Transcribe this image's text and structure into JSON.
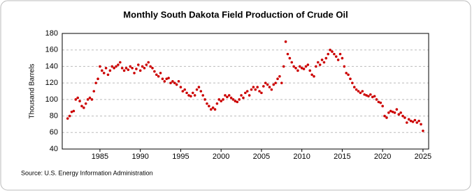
{
  "chart_data": {
    "type": "scatter",
    "title": "Monthly South Dakota Field Production of Crude Oil",
    "y_label": "Thousand Barrels",
    "source": "Source: U.S. Energy Information Administration",
    "xlim": [
      1980.33,
      2025.7
    ],
    "xticks": [
      1985,
      1990,
      1995,
      2000,
      2005,
      2010,
      2015,
      2020,
      2025
    ],
    "ylim": [
      40,
      180
    ],
    "yticks": [
      40,
      60,
      80,
      100,
      120,
      140,
      160,
      180
    ],
    "grid": true,
    "series": [
      {
        "name": "South Dakota Field Production of Crude Oil",
        "color": "#cc0000",
        "x": [
          1981,
          1981.25,
          1981.5,
          1981.75,
          1982,
          1982.25,
          1982.5,
          1982.75,
          1983,
          1983.25,
          1983.5,
          1983.75,
          1984,
          1984.25,
          1984.5,
          1984.75,
          1985,
          1985.25,
          1985.5,
          1985.75,
          1986,
          1986.25,
          1986.5,
          1986.75,
          1987,
          1987.25,
          1987.5,
          1987.75,
          1988,
          1988.25,
          1988.5,
          1988.75,
          1989,
          1989.25,
          1989.5,
          1989.75,
          1990,
          1990.25,
          1990.5,
          1990.75,
          1991,
          1991.25,
          1991.5,
          1991.75,
          1992,
          1992.25,
          1992.5,
          1992.75,
          1993,
          1993.25,
          1993.5,
          1993.75,
          1994,
          1994.25,
          1994.5,
          1994.75,
          1995,
          1995.25,
          1995.5,
          1995.75,
          1996,
          1996.25,
          1996.5,
          1996.75,
          1997,
          1997.25,
          1997.5,
          1997.75,
          1998,
          1998.25,
          1998.5,
          1998.75,
          1999,
          1999.25,
          1999.5,
          1999.75,
          2000,
          2000.25,
          2000.5,
          2000.75,
          2001,
          2001.25,
          2001.5,
          2001.75,
          2002,
          2002.25,
          2002.5,
          2002.75,
          2003,
          2003.25,
          2003.5,
          2003.75,
          2004,
          2004.25,
          2004.5,
          2004.75,
          2005,
          2005.25,
          2005.5,
          2005.75,
          2006,
          2006.25,
          2006.5,
          2006.75,
          2007,
          2007.25,
          2007.5,
          2007.75,
          2008,
          2008.25,
          2008.5,
          2008.75,
          2009,
          2009.25,
          2009.5,
          2009.75,
          2010,
          2010.25,
          2010.5,
          2010.75,
          2011,
          2011.25,
          2011.5,
          2011.75,
          2012,
          2012.25,
          2012.5,
          2012.75,
          2013,
          2013.25,
          2013.5,
          2013.75,
          2014,
          2014.25,
          2014.5,
          2014.75,
          2015,
          2015.25,
          2015.5,
          2015.75,
          2016,
          2016.25,
          2016.5,
          2016.75,
          2017,
          2017.25,
          2017.5,
          2017.75,
          2018,
          2018.25,
          2018.5,
          2018.75,
          2019,
          2019.25,
          2019.5,
          2019.75,
          2020,
          2020.25,
          2020.5,
          2020.75,
          2021,
          2021.25,
          2021.5,
          2021.75,
          2022,
          2022.25,
          2022.5,
          2022.75,
          2023,
          2023.25,
          2023.5,
          2023.75,
          2024,
          2024.25,
          2024.5,
          2024.75,
          2025
        ],
        "values": [
          77,
          80,
          85,
          86,
          100,
          102,
          98,
          92,
          90,
          95,
          100,
          102,
          100,
          110,
          120,
          125,
          140,
          135,
          132,
          138,
          130,
          135,
          140,
          138,
          140,
          142,
          145,
          138,
          135,
          138,
          136,
          140,
          138,
          132,
          137,
          142,
          135,
          140,
          138,
          142,
          145,
          140,
          138,
          134,
          130,
          128,
          132,
          125,
          122,
          125,
          126,
          120,
          122,
          120,
          118,
          122,
          115,
          110,
          112,
          108,
          105,
          104,
          108,
          105,
          112,
          115,
          110,
          105,
          100,
          95,
          92,
          88,
          90,
          88,
          95,
          100,
          98,
          100,
          105,
          103,
          105,
          102,
          100,
          98,
          97,
          100,
          105,
          102,
          108,
          110,
          105,
          112,
          115,
          112,
          115,
          110,
          108,
          116,
          120,
          118,
          115,
          112,
          118,
          120,
          125,
          128,
          120,
          140,
          170,
          155,
          150,
          145,
          140,
          138,
          135,
          140,
          138,
          137,
          140,
          142,
          135,
          130,
          128,
          140,
          145,
          142,
          148,
          145,
          150,
          155,
          160,
          158,
          155,
          152,
          148,
          155,
          150,
          140,
          132,
          130,
          125,
          120,
          115,
          112,
          110,
          108,
          110,
          106,
          105,
          104,
          106,
          103,
          104,
          100,
          97,
          96,
          92,
          80,
          78,
          84,
          86,
          85,
          84,
          88,
          82,
          84,
          80,
          78,
          72,
          76,
          74,
          73,
          75,
          72,
          74,
          70,
          62
        ]
      }
    ]
  }
}
